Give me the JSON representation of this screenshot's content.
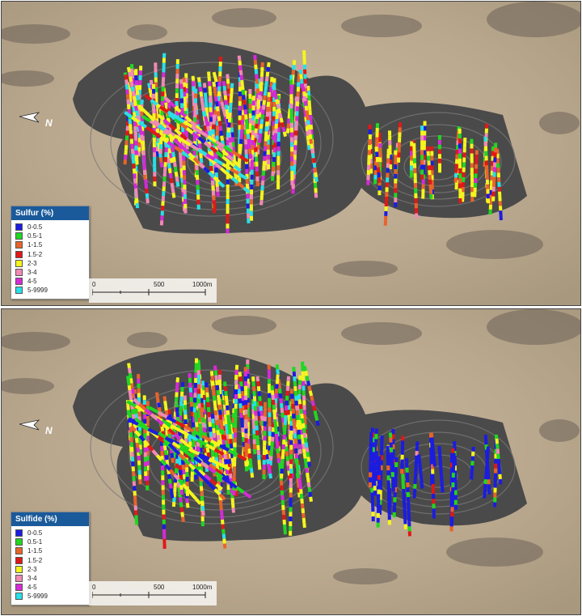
{
  "panels": [
    {
      "id": "sulfur",
      "legend": {
        "title": "Sulfur (%)",
        "items": [
          {
            "label": "0-0.5",
            "color": "#1c1ce0"
          },
          {
            "label": "0.5-1",
            "color": "#22d622"
          },
          {
            "label": "1-1.5",
            "color": "#e8642a"
          },
          {
            "label": "1.5-2",
            "color": "#e01818"
          },
          {
            "label": "2-3",
            "color": "#f5f51e"
          },
          {
            "label": "3-4",
            "color": "#f08ab4"
          },
          {
            "label": "4-5",
            "color": "#d62ad6"
          },
          {
            "label": "5-9999",
            "color": "#28e0e8"
          }
        ]
      },
      "scale": {
        "labels": [
          "0",
          "500",
          "1000m"
        ]
      },
      "north_label": "N"
    },
    {
      "id": "sulfide",
      "legend": {
        "title": "Sulfide (%)",
        "items": [
          {
            "label": "0-0.5",
            "color": "#1c1ce0"
          },
          {
            "label": "0.5-1",
            "color": "#22d622"
          },
          {
            "label": "1-1.5",
            "color": "#e8642a"
          },
          {
            "label": "1.5-2",
            "color": "#e01818"
          },
          {
            "label": "2-3",
            "color": "#f5f51e"
          },
          {
            "label": "3-4",
            "color": "#f08ab4"
          },
          {
            "label": "4-5",
            "color": "#d62ad6"
          },
          {
            "label": "5-9999",
            "color": "#28e0e8"
          }
        ]
      },
      "scale": {
        "labels": [
          "0",
          "500",
          "1000m"
        ]
      },
      "north_label": "N"
    }
  ]
}
